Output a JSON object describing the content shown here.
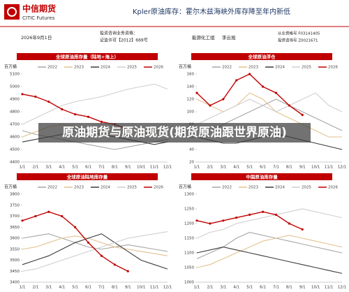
{
  "header": {
    "logo_cn": "中信期货",
    "logo_en": "CITIC Futures",
    "title": "Kpler原油库存：霍尔木兹海峡外库存降至年内新低",
    "date": "2026年9月1日",
    "qualification_1": "投资咨询业务资格：",
    "qualification_2": "证监许可【2012】669号",
    "team": "能源化工组",
    "analyst": "李云旭",
    "license_1": "从业资格号 F03141405",
    "license_2": "投资咨询号 Z0021671"
  },
  "overlay_title": "原油期货与原油现货(期货原油跟世界原油)",
  "chart_data": [
    {
      "type": "line",
      "title": "全球原油库存量（陆地+海上）",
      "unit": "百万桶",
      "categories": [
        "1/1",
        "2/1",
        "3/1",
        "4/1",
        "5/1",
        "6/1",
        "7/1",
        "8/1",
        "9/1",
        "10/1",
        "11/1",
        "12/1"
      ],
      "ylim": [
        4400,
        5100
      ],
      "yticks": [
        4400,
        4500,
        4600,
        4700,
        4800,
        4900,
        5000,
        5100
      ],
      "series": [
        {
          "name": "2022",
          "color": "#a6a6a6",
          "values": [
            4650,
            4620,
            4600,
            4580,
            4560,
            4540,
            4520,
            4500,
            4520,
            4540,
            4560,
            4580
          ]
        },
        {
          "name": "2023",
          "color": "#e3c28f",
          "values": [
            4600,
            4640,
            4680,
            4700,
            4680,
            4660,
            4640,
            4620,
            4600,
            4620,
            4640,
            4660
          ]
        },
        {
          "name": "2024",
          "color": "#3a3a3a",
          "values": [
            4560,
            4580,
            4600,
            4620,
            4650,
            4640,
            4620,
            4600,
            4580,
            4560,
            4540,
            4560
          ]
        },
        {
          "name": "2025",
          "color": "#cfcfcf",
          "values": [
            4700,
            4750,
            4800,
            4850,
            4880,
            4900,
            4920,
            4950,
            4980,
            5000,
            5020,
            4980
          ]
        },
        {
          "name": "2026",
          "color": "#c00000",
          "values": [
            4940,
            4920,
            4880,
            4820,
            4780,
            4760,
            4720,
            4700,
            4660,
            null,
            null,
            null
          ]
        }
      ]
    },
    {
      "type": "line",
      "title": "全球原油浮仓",
      "unit": "百万桶",
      "categories": [
        "1/1",
        "2/1",
        "3/1",
        "4/1",
        "5/1",
        "6/1",
        "7/1",
        "8/1",
        "9/1",
        "10/1",
        "11/1",
        "12/1"
      ],
      "ylim": [
        20,
        160
      ],
      "yticks": [
        20,
        40,
        60,
        80,
        100,
        120,
        140,
        160
      ],
      "series": [
        {
          "name": "2022",
          "color": "#a6a6a6",
          "values": [
            60,
            70,
            80,
            90,
            100,
            110,
            120,
            110,
            100,
            90,
            80,
            70
          ]
        },
        {
          "name": "2023",
          "color": "#e3c28f",
          "values": [
            120,
            110,
            100,
            110,
            130,
            120,
            100,
            90,
            80,
            70,
            60,
            60
          ]
        },
        {
          "name": "2024",
          "color": "#3a3a3a",
          "values": [
            60,
            55,
            50,
            50,
            55,
            60,
            65,
            60,
            55,
            50,
            45,
            40
          ]
        },
        {
          "name": "2025",
          "color": "#cfcfcf",
          "values": [
            80,
            90,
            100,
            110,
            120,
            110,
            100,
            110,
            120,
            130,
            110,
            100
          ]
        },
        {
          "name": "2026",
          "color": "#c00000",
          "values": [
            130,
            110,
            120,
            150,
            160,
            140,
            130,
            110,
            95,
            null,
            null,
            null
          ]
        }
      ]
    },
    {
      "type": "line",
      "title": "全球原油陆地库存量",
      "unit": "百万桶",
      "categories": [
        "1/1",
        "2/1",
        "3/1",
        "4/1",
        "5/1",
        "6/1",
        "7/1",
        "8/1",
        "9/1",
        "10/1",
        "11/1",
        "12/1"
      ],
      "ylim": [
        3400,
        3800
      ],
      "yticks": [
        3400,
        3450,
        3500,
        3550,
        3600,
        3650,
        3700,
        3750,
        3800
      ],
      "series": [
        {
          "name": "2022",
          "color": "#a6a6a6",
          "values": [
            3600,
            3610,
            3620,
            3600,
            3580,
            3560,
            3550,
            3560,
            3570,
            3560,
            3550,
            3540
          ]
        },
        {
          "name": "2023",
          "color": "#e3c28f",
          "values": [
            3550,
            3560,
            3580,
            3600,
            3610,
            3600,
            3580,
            3560,
            3550,
            3540,
            3530,
            3520
          ]
        },
        {
          "name": "2024",
          "color": "#3a3a3a",
          "values": [
            3480,
            3500,
            3520,
            3550,
            3580,
            3600,
            3620,
            3580,
            3540,
            3500,
            3480,
            3460
          ]
        },
        {
          "name": "2025",
          "color": "#cfcfcf",
          "values": [
            3450,
            3460,
            3480,
            3500,
            3520,
            3540,
            3560,
            3580,
            3600,
            3610,
            3620,
            3630
          ]
        },
        {
          "name": "2026",
          "color": "#c00000",
          "values": [
            3680,
            3700,
            3720,
            3700,
            3650,
            3580,
            3520,
            3480,
            3450,
            null,
            null,
            null
          ]
        }
      ]
    },
    {
      "type": "line",
      "title": "中国原油库存量",
      "unit": "百万桶",
      "categories": [
        "1/1",
        "2/1",
        "3/1",
        "4/1",
        "5/1",
        "6/1",
        "7/1",
        "8/1",
        "9/1",
        "10/1",
        "11/1",
        "12/1"
      ],
      "ylim": [
        1000,
        1300
      ],
      "yticks": [
        1000,
        1050,
        1100,
        1150,
        1200,
        1250,
        1300
      ],
      "series": [
        {
          "name": "2022",
          "color": "#a6a6a6",
          "values": [
            1080,
            1100,
            1120,
            1150,
            1170,
            1160,
            1150,
            1140,
            1130,
            1120,
            1110,
            1100
          ]
        },
        {
          "name": "2023",
          "color": "#e3c28f",
          "values": [
            1050,
            1060,
            1080,
            1100,
            1120,
            1140,
            1150,
            1160,
            1150,
            1140,
            1130,
            1120
          ]
        },
        {
          "name": "2024",
          "color": "#3a3a3a",
          "values": [
            1100,
            1110,
            1120,
            1110,
            1100,
            1090,
            1080,
            1070,
            1060,
            1050,
            1040,
            1030
          ]
        },
        {
          "name": "2025",
          "color": "#cfcfcf",
          "values": [
            1150,
            1170,
            1180,
            1200,
            1210,
            1220,
            1230,
            1240,
            1250,
            1240,
            1230,
            1220
          ]
        },
        {
          "name": "2026",
          "color": "#c00000",
          "values": [
            1210,
            1200,
            1210,
            1220,
            1230,
            1240,
            1230,
            1200,
            1180,
            null,
            null,
            null
          ]
        }
      ]
    }
  ]
}
